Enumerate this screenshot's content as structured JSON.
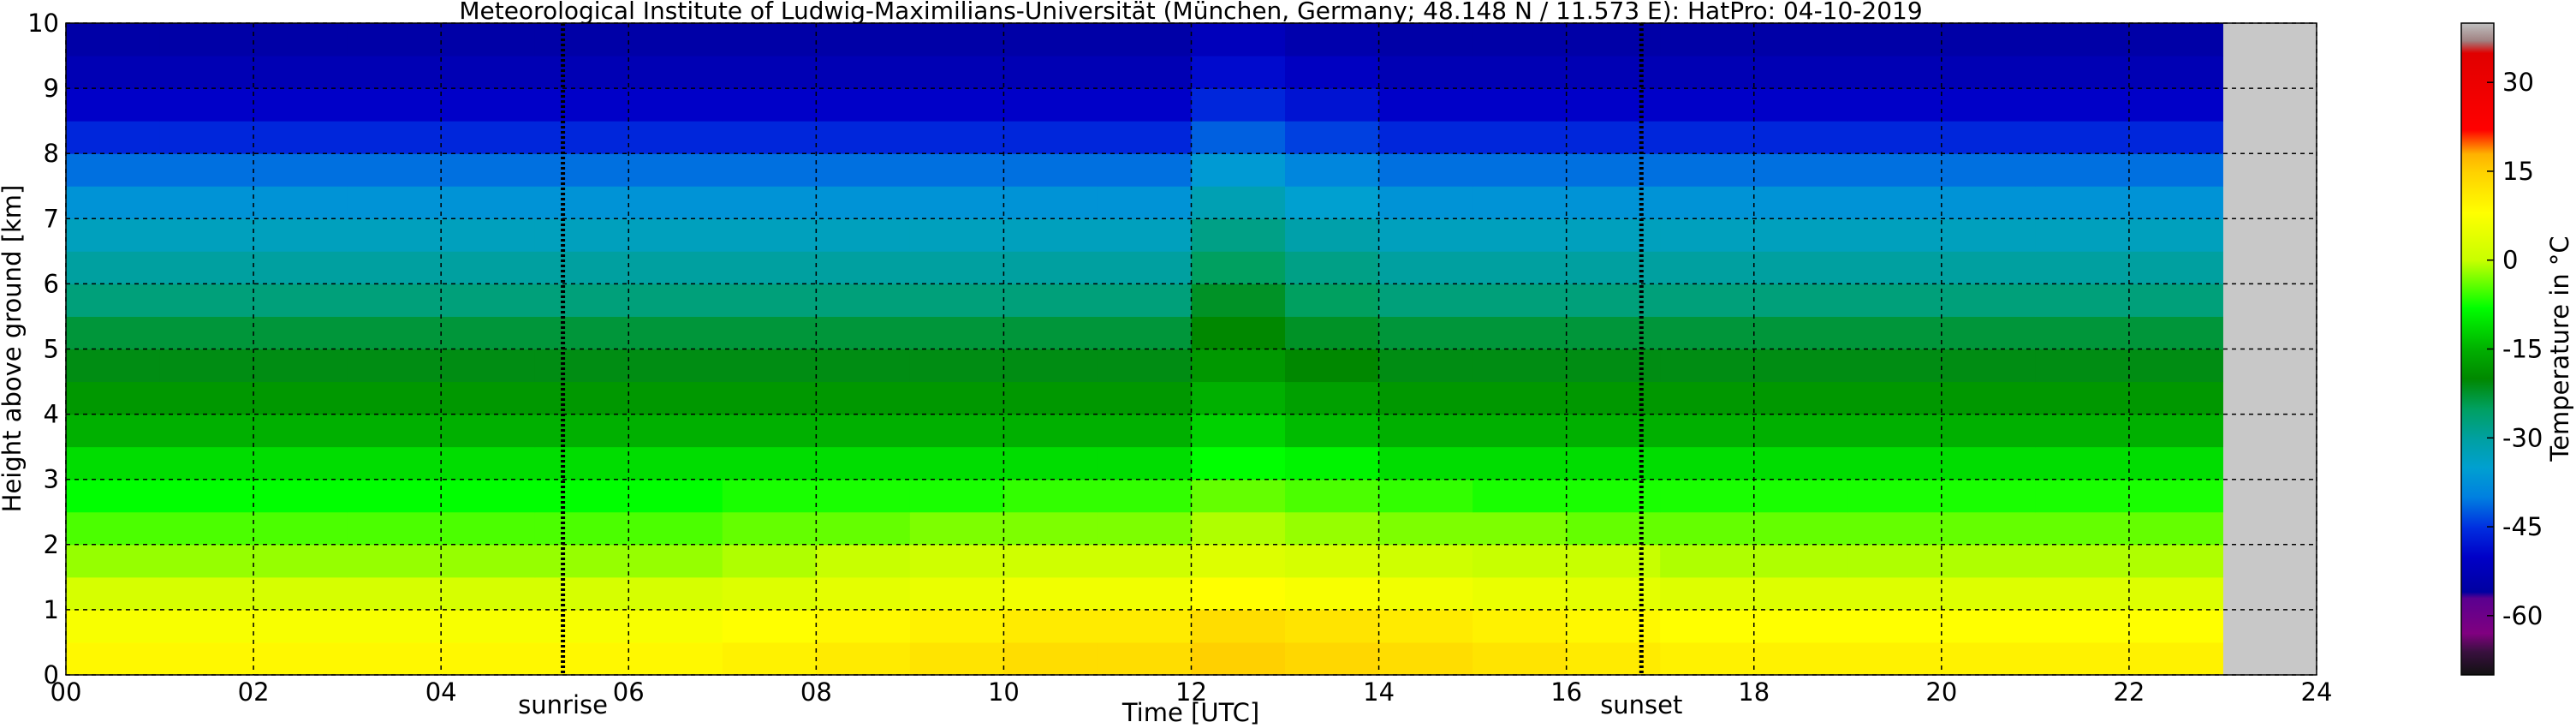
{
  "chart_data": {
    "type": "heatmap",
    "title": "Meteorological Institute of Ludwig-Maximilians-Universität (München, Germany; 48.148 N / 11.573 E):     HatPro: 04-10-2019",
    "x_label": "Time [UTC]",
    "y_label": "Height above ground [km]",
    "colorbar_label": "Temperature in °C",
    "xlim": [
      0,
      24
    ],
    "ylim": [
      0,
      10
    ],
    "xticks": [
      {
        "value": 0,
        "label": "00"
      },
      {
        "value": 2,
        "label": "02"
      },
      {
        "value": 4,
        "label": "04"
      },
      {
        "value": 6,
        "label": "06"
      },
      {
        "value": 8,
        "label": "08"
      },
      10,
      12,
      14,
      16,
      18,
      20,
      22,
      24
    ],
    "yticks": [
      0,
      1,
      2,
      3,
      4,
      5,
      6,
      7,
      8,
      9,
      10
    ],
    "grid": true,
    "x_edges": [
      0,
      1,
      2,
      3,
      4,
      5,
      6,
      7,
      8,
      9,
      10,
      11,
      12,
      13,
      14,
      15,
      16,
      17,
      18,
      19,
      20,
      21,
      22,
      23
    ],
    "y_edges": [
      0,
      0.5,
      1,
      1.5,
      2,
      2.5,
      3,
      3.5,
      4,
      4.5,
      5,
      5.5,
      6,
      6.5,
      7,
      7.5,
      8,
      8.5,
      9,
      9.5,
      10
    ],
    "values": [
      [
        9,
        9,
        9,
        9,
        9,
        9,
        9,
        10,
        11,
        12,
        13,
        13,
        15,
        14,
        13,
        12,
        11,
        10,
        10,
        10,
        10,
        10,
        10
      ],
      [
        7,
        7,
        7,
        7,
        7,
        7,
        7,
        8,
        9,
        10,
        11,
        11,
        13,
        12,
        11,
        10,
        9,
        8,
        8,
        8,
        8,
        8,
        8
      ],
      [
        2,
        2,
        2,
        2,
        2,
        2,
        2,
        3,
        4,
        5,
        6,
        6,
        8,
        7,
        6,
        5,
        4,
        3,
        3,
        3,
        3,
        3,
        3
      ],
      [
        -2,
        -2,
        -2,
        -2,
        -2,
        -2,
        -2,
        -1,
        0,
        1,
        1,
        1,
        3,
        2,
        1,
        0,
        0,
        -1,
        -1,
        -1,
        -1,
        -1,
        -1
      ],
      [
        -5,
        -5,
        -5,
        -5,
        -5,
        -5,
        -5,
        -4,
        -4,
        -3,
        -3,
        -3,
        -1,
        -2,
        -3,
        -3,
        -4,
        -4,
        -4,
        -4,
        -4,
        -4,
        -4
      ],
      [
        -8,
        -8,
        -8,
        -8,
        -8,
        -8,
        -8,
        -7,
        -7,
        -7,
        -6,
        -6,
        -4,
        -5,
        -6,
        -7,
        -7,
        -7,
        -7,
        -7,
        -7,
        -7,
        -7
      ],
      [
        -11,
        -11,
        -11,
        -11,
        -11,
        -11,
        -11,
        -11,
        -11,
        -11,
        -11,
        -11,
        -8,
        -9,
        -11,
        -11,
        -11,
        -11,
        -11,
        -11,
        -11,
        -11,
        -11
      ],
      [
        -15,
        -15,
        -15,
        -15,
        -15,
        -15,
        -15,
        -15,
        -15,
        -15,
        -15,
        -15,
        -12,
        -14,
        -15,
        -15,
        -15,
        -15,
        -15,
        -15,
        -15,
        -15,
        -15
      ],
      [
        -18,
        -18,
        -18,
        -18,
        -18,
        -18,
        -18,
        -18,
        -18,
        -18,
        -18,
        -18,
        -15,
        -17,
        -18,
        -18,
        -18,
        -18,
        -18,
        -18,
        -18,
        -18,
        -18
      ],
      [
        -21,
        -21,
        -21,
        -21,
        -21,
        -21,
        -21,
        -21,
        -21,
        -21,
        -21,
        -21,
        -18,
        -20,
        -21,
        -21,
        -21,
        -21,
        -21,
        -21,
        -21,
        -21,
        -21
      ],
      [
        -23,
        -23,
        -23,
        -23,
        -23,
        -23,
        -23,
        -23,
        -23,
        -23,
        -23,
        -23,
        -20,
        -22,
        -23,
        -23,
        -23,
        -23,
        -23,
        -23,
        -23,
        -23,
        -23
      ],
      [
        -27,
        -27,
        -27,
        -27,
        -27,
        -27,
        -27,
        -27,
        -27,
        -27,
        -27,
        -27,
        -22,
        -25,
        -27,
        -27,
        -27,
        -27,
        -27,
        -27,
        -27,
        -27,
        -27
      ],
      [
        -30,
        -30,
        -30,
        -30,
        -30,
        -30,
        -30,
        -30,
        -30,
        -30,
        -30,
        -30,
        -25,
        -28,
        -30,
        -30,
        -30,
        -30,
        -30,
        -30,
        -30,
        -30,
        -30
      ],
      [
        -33,
        -33,
        -33,
        -33,
        -33,
        -33,
        -33,
        -33,
        -33,
        -33,
        -33,
        -33,
        -28,
        -31,
        -33,
        -33,
        -33,
        -33,
        -33,
        -33,
        -33,
        -33,
        -33
      ],
      [
        -37,
        -37,
        -37,
        -37,
        -37,
        -37,
        -37,
        -37,
        -37,
        -37,
        -37,
        -37,
        -32,
        -35,
        -37,
        -37,
        -37,
        -37,
        -37,
        -37,
        -37,
        -37,
        -37
      ],
      [
        -41,
        -41,
        -41,
        -41,
        -41,
        -41,
        -41,
        -41,
        -41,
        -41,
        -41,
        -41,
        -36,
        -39,
        -41,
        -41,
        -41,
        -41,
        -41,
        -41,
        -41,
        -41,
        -41
      ],
      [
        -46,
        -46,
        -46,
        -46,
        -46,
        -46,
        -46,
        -46,
        -46,
        -46,
        -46,
        -46,
        -42,
        -44,
        -46,
        -46,
        -46,
        -46,
        -46,
        -46,
        -46,
        -46,
        -46
      ],
      [
        -50,
        -50,
        -50,
        -50,
        -50,
        -50,
        -50,
        -50,
        -50,
        -50,
        -50,
        -50,
        -46,
        -48,
        -50,
        -50,
        -50,
        -50,
        -50,
        -50,
        -50,
        -50,
        -50
      ],
      [
        -53,
        -53,
        -53,
        -53,
        -53,
        -53,
        -53,
        -53,
        -53,
        -53,
        -53,
        -53,
        -49,
        -51,
        -53,
        -53,
        -53,
        -53,
        -53,
        -53,
        -53,
        -53,
        -53
      ],
      [
        -55,
        -55,
        -55,
        -55,
        -55,
        -55,
        -55,
        -55,
        -55,
        -55,
        -55,
        -55,
        -52,
        -54,
        -55,
        -55,
        -55,
        -55,
        -55,
        -55,
        -55,
        -55,
        -55
      ]
    ],
    "clim": [
      -70,
      40
    ],
    "cticks": [
      -60,
      -45,
      -30,
      -15,
      0,
      15,
      30
    ],
    "colormap": [
      {
        "value": -70,
        "color": "#111111"
      },
      {
        "value": -66,
        "color": "#3a1040"
      },
      {
        "value": -63,
        "color": "#800080"
      },
      {
        "value": -57,
        "color": "#5a0090"
      },
      {
        "value": -56,
        "color": "#0000a0"
      },
      {
        "value": -50,
        "color": "#0000c8"
      },
      {
        "value": -45,
        "color": "#0030e0"
      },
      {
        "value": -40,
        "color": "#0080e0"
      },
      {
        "value": -35,
        "color": "#00a0d0"
      },
      {
        "value": -30,
        "color": "#00a0a0"
      },
      {
        "value": -25,
        "color": "#00a060"
      },
      {
        "value": -20,
        "color": "#008800"
      },
      {
        "value": -15,
        "color": "#00b000"
      },
      {
        "value": -8,
        "color": "#00ff00"
      },
      {
        "value": 0,
        "color": "#c8ff00"
      },
      {
        "value": 8,
        "color": "#ffff00"
      },
      {
        "value": 15,
        "color": "#ffd000"
      },
      {
        "value": 18,
        "color": "#ffb000"
      },
      {
        "value": 22,
        "color": "#ff0000"
      },
      {
        "value": 35,
        "color": "#e00000"
      },
      {
        "value": 37,
        "color": "#a08080"
      },
      {
        "value": 40,
        "color": "#c0c0c0"
      }
    ],
    "missing_color": "#c8c8c8",
    "annotations": [
      {
        "x": 5.3,
        "label": "sunrise"
      },
      {
        "x": 16.8,
        "label": "sunset"
      }
    ]
  }
}
